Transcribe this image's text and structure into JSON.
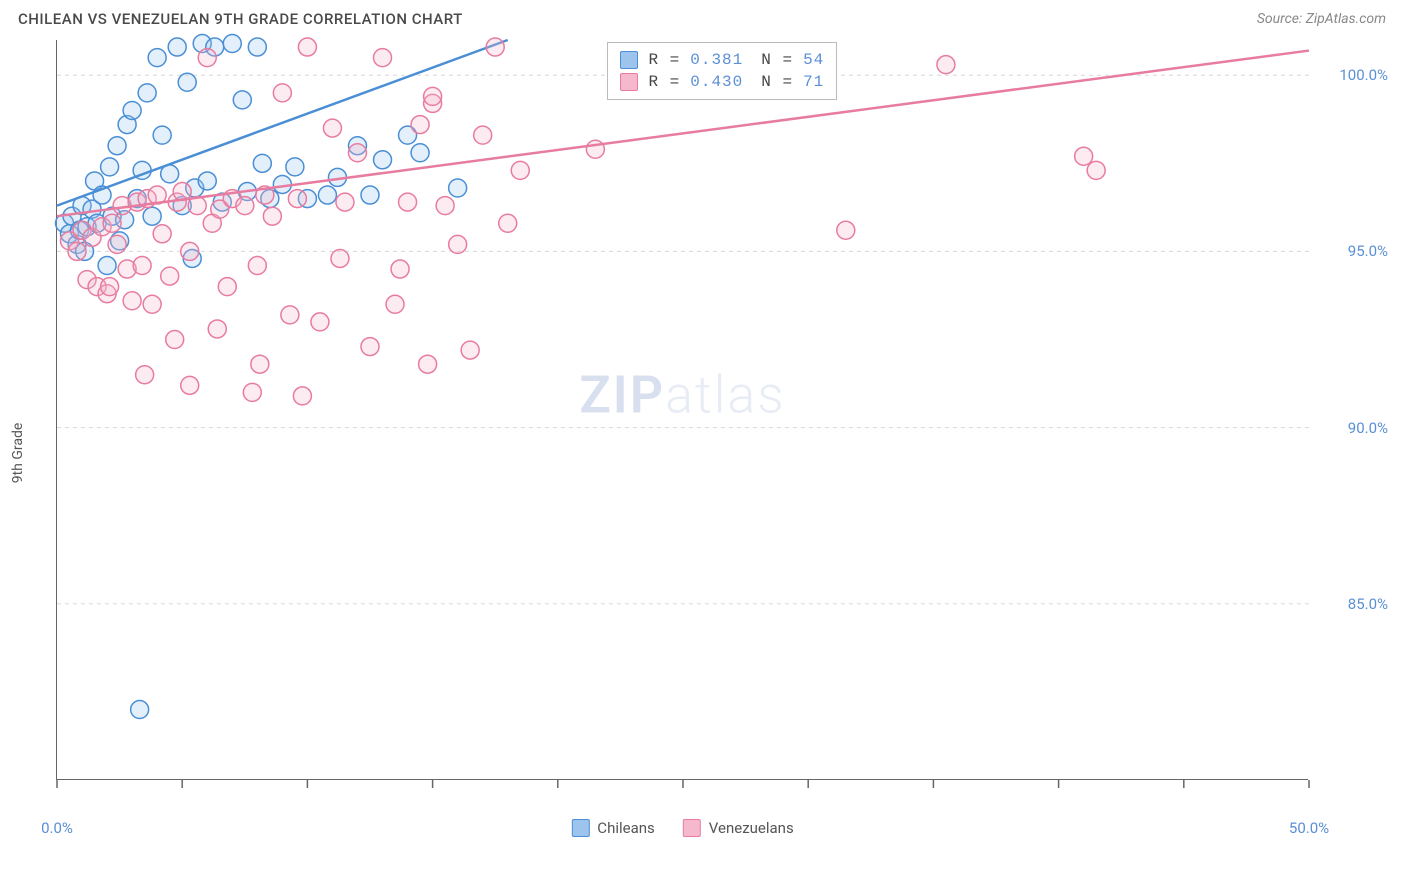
{
  "title": "CHILEAN VS VENEZUELAN 9TH GRADE CORRELATION CHART",
  "source": "Source: ZipAtlas.com",
  "y_axis_label": "9th Grade",
  "watermark_bold": "ZIP",
  "watermark_light": "atlas",
  "chart": {
    "type": "scatter",
    "xlim": [
      0,
      50
    ],
    "ylim": [
      80,
      101
    ],
    "x_ticks": [
      0,
      5,
      10,
      15,
      20,
      25,
      30,
      35,
      40,
      45,
      50
    ],
    "x_tick_labels": {
      "0": "0.0%",
      "50": "50.0%"
    },
    "y_ticks": [
      85,
      90,
      95,
      100
    ],
    "y_tick_labels": {
      "85": "85.0%",
      "90": "90.0%",
      "95": "95.0%",
      "100": "100.0%"
    },
    "gridline_color": "#d8d8d8",
    "gridline_dash": "4,4",
    "background_color": "#ffffff",
    "marker_radius": 9,
    "marker_stroke_width": 1.5,
    "marker_fill_opacity": 0.28,
    "series": [
      {
        "name": "Chileans",
        "color_stroke": "#4a8fd6",
        "color_fill": "#9cc4ec",
        "R": "0.381",
        "N": "54",
        "regression": {
          "x1": 0,
          "y1": 96.3,
          "x2": 18,
          "y2": 101,
          "line_width": 2.5
        },
        "points": [
          [
            0.3,
            95.8
          ],
          [
            0.5,
            95.5
          ],
          [
            0.6,
            96.0
          ],
          [
            0.8,
            95.2
          ],
          [
            0.9,
            95.6
          ],
          [
            1.0,
            96.3
          ],
          [
            1.1,
            95.0
          ],
          [
            1.2,
            95.7
          ],
          [
            1.4,
            96.2
          ],
          [
            1.5,
            97.0
          ],
          [
            1.6,
            95.8
          ],
          [
            1.8,
            96.6
          ],
          [
            2.0,
            94.6
          ],
          [
            2.1,
            97.4
          ],
          [
            2.2,
            96.0
          ],
          [
            2.4,
            98.0
          ],
          [
            2.5,
            95.3
          ],
          [
            2.7,
            95.9
          ],
          [
            2.8,
            98.6
          ],
          [
            3.0,
            99.0
          ],
          [
            3.2,
            96.5
          ],
          [
            3.4,
            97.3
          ],
          [
            3.6,
            99.5
          ],
          [
            3.8,
            96.0
          ],
          [
            4.0,
            100.5
          ],
          [
            4.2,
            98.3
          ],
          [
            4.5,
            97.2
          ],
          [
            4.8,
            100.8
          ],
          [
            5.0,
            96.3
          ],
          [
            5.2,
            99.8
          ],
          [
            5.5,
            96.8
          ],
          [
            5.8,
            100.9
          ],
          [
            6.0,
            97.0
          ],
          [
            6.3,
            100.8
          ],
          [
            6.6,
            96.4
          ],
          [
            7.0,
            100.9
          ],
          [
            7.4,
            99.3
          ],
          [
            7.6,
            96.7
          ],
          [
            8.0,
            100.8
          ],
          [
            8.2,
            97.5
          ],
          [
            8.5,
            96.5
          ],
          [
            9.0,
            96.9
          ],
          [
            9.5,
            97.4
          ],
          [
            10.0,
            96.5
          ],
          [
            10.8,
            96.6
          ],
          [
            11.2,
            97.1
          ],
          [
            12.0,
            98.0
          ],
          [
            12.5,
            96.6
          ],
          [
            13.0,
            97.6
          ],
          [
            14.0,
            98.3
          ],
          [
            14.5,
            97.8
          ],
          [
            16.0,
            96.8
          ],
          [
            3.3,
            82.0
          ],
          [
            5.4,
            94.8
          ]
        ]
      },
      {
        "name": "Venezuelans",
        "color_stroke": "#e87ca0",
        "color_fill": "#f5b8cc",
        "R": "0.430",
        "N": "71",
        "regression": {
          "x1": 0,
          "y1": 96.0,
          "x2": 50,
          "y2": 100.7,
          "line_width": 2.5
        },
        "points": [
          [
            0.5,
            95.3
          ],
          [
            0.8,
            95.0
          ],
          [
            1.0,
            95.6
          ],
          [
            1.2,
            94.2
          ],
          [
            1.4,
            95.4
          ],
          [
            1.6,
            94.0
          ],
          [
            1.8,
            95.7
          ],
          [
            2.0,
            93.8
          ],
          [
            2.2,
            95.8
          ],
          [
            2.4,
            95.2
          ],
          [
            2.6,
            96.3
          ],
          [
            2.8,
            94.5
          ],
          [
            3.0,
            93.6
          ],
          [
            3.2,
            96.4
          ],
          [
            3.4,
            94.6
          ],
          [
            3.6,
            96.5
          ],
          [
            3.8,
            93.5
          ],
          [
            4.0,
            96.6
          ],
          [
            4.2,
            95.5
          ],
          [
            4.5,
            94.3
          ],
          [
            4.8,
            96.4
          ],
          [
            5.0,
            96.7
          ],
          [
            5.3,
            95.0
          ],
          [
            5.6,
            96.3
          ],
          [
            6.0,
            100.5
          ],
          [
            6.2,
            95.8
          ],
          [
            6.5,
            96.2
          ],
          [
            6.8,
            94.0
          ],
          [
            7.0,
            96.5
          ],
          [
            7.5,
            96.3
          ],
          [
            8.0,
            94.6
          ],
          [
            8.3,
            96.6
          ],
          [
            8.6,
            96.0
          ],
          [
            9.0,
            99.5
          ],
          [
            9.3,
            93.2
          ],
          [
            9.6,
            96.5
          ],
          [
            10.0,
            100.8
          ],
          [
            10.5,
            93.0
          ],
          [
            11.0,
            98.5
          ],
          [
            11.5,
            96.4
          ],
          [
            12.0,
            97.8
          ],
          [
            12.5,
            92.3
          ],
          [
            13.0,
            100.5
          ],
          [
            13.5,
            93.5
          ],
          [
            14.0,
            96.4
          ],
          [
            14.5,
            98.6
          ],
          [
            15.0,
            99.2
          ],
          [
            15.0,
            99.4
          ],
          [
            15.5,
            96.3
          ],
          [
            16.0,
            95.2
          ],
          [
            16.5,
            92.2
          ],
          [
            17.0,
            98.3
          ],
          [
            17.5,
            100.8
          ],
          [
            18.0,
            95.8
          ],
          [
            18.5,
            97.3
          ],
          [
            21.5,
            97.9
          ],
          [
            31.5,
            95.6
          ],
          [
            35.5,
            100.3
          ],
          [
            41.0,
            97.7
          ],
          [
            41.5,
            97.3
          ],
          [
            7.8,
            91.0
          ],
          [
            5.3,
            91.2
          ],
          [
            2.1,
            94.0
          ],
          [
            3.5,
            91.5
          ],
          [
            4.7,
            92.5
          ],
          [
            6.4,
            92.8
          ],
          [
            8.1,
            91.8
          ],
          [
            9.8,
            90.9
          ],
          [
            11.3,
            94.8
          ],
          [
            13.7,
            94.5
          ],
          [
            14.8,
            91.8
          ]
        ]
      }
    ],
    "legend_top": {
      "label_r": "R =",
      "label_n": "N ="
    },
    "bottom_legend": [
      "Chileans",
      "Venezuelans"
    ]
  }
}
